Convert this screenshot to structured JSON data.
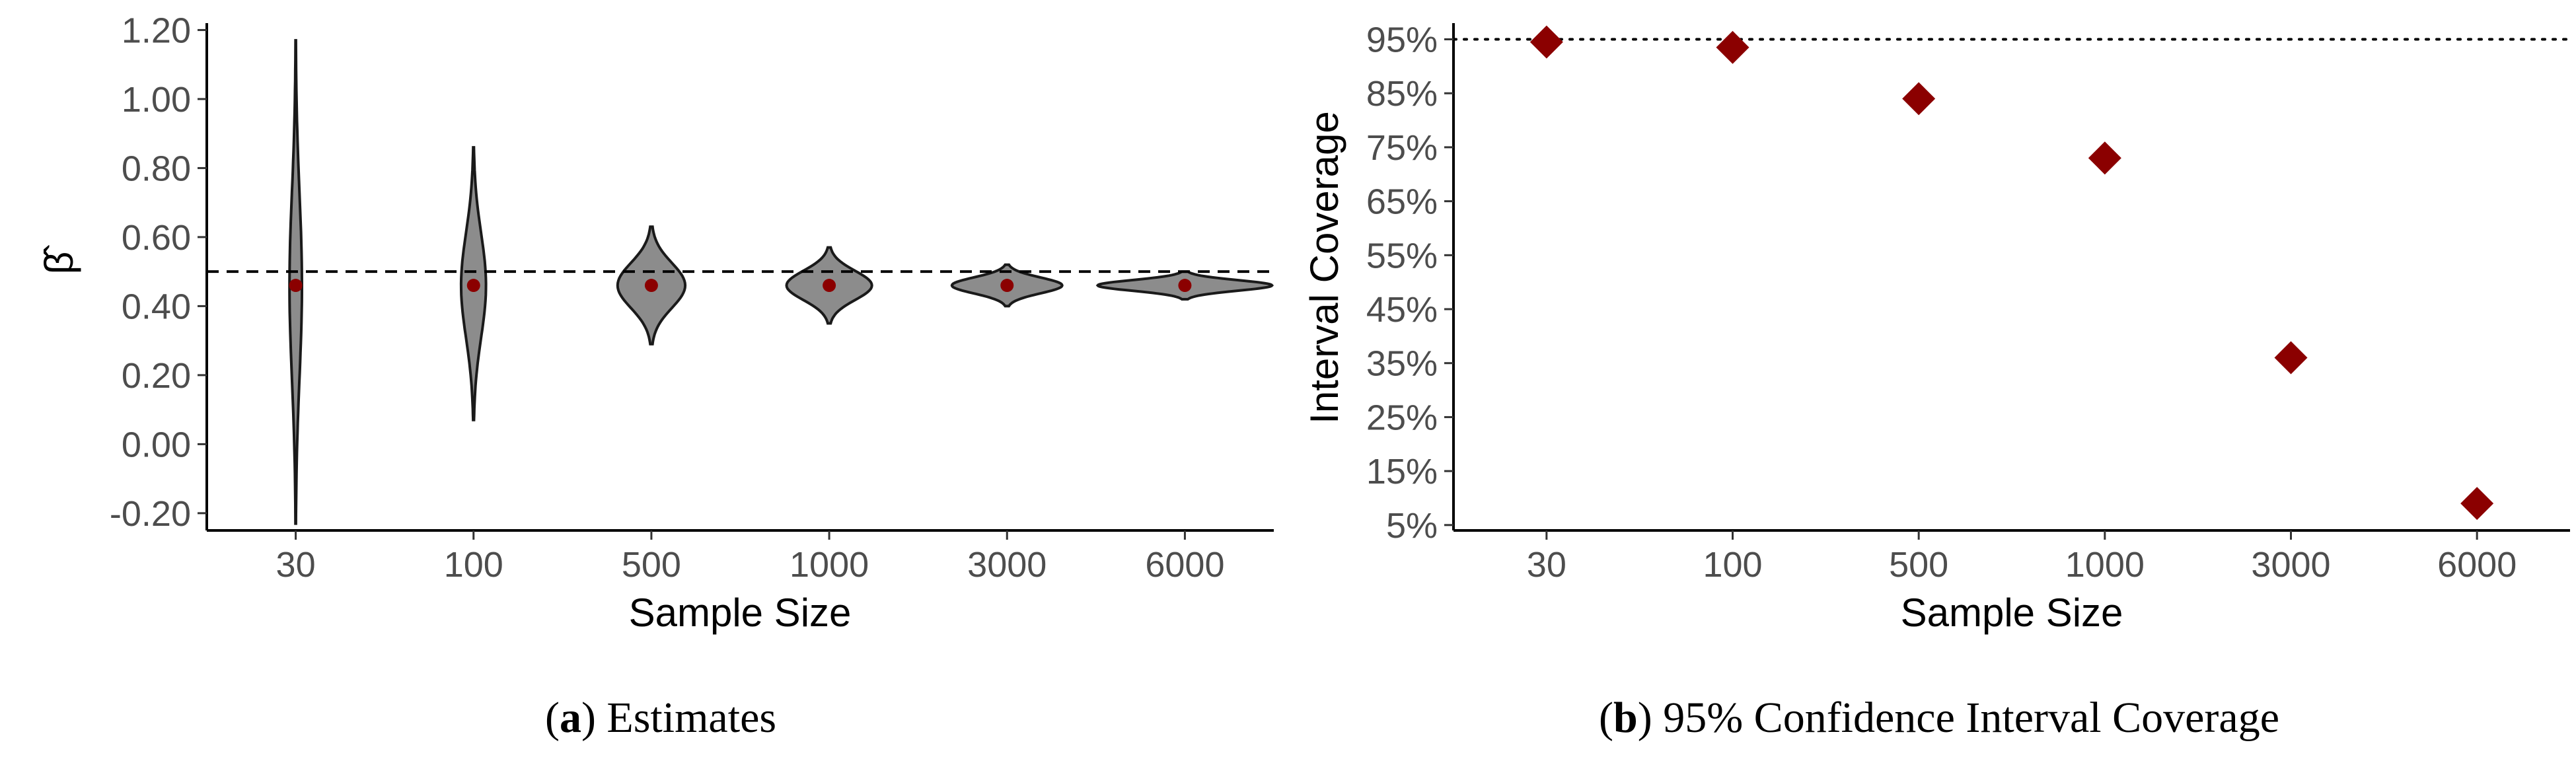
{
  "chart_data": [
    {
      "type": "violin",
      "caption_letter": "a",
      "caption_text": "Estimates",
      "xlabel": "Sample Size",
      "ylabel": "β̂",
      "categories": [
        "30",
        "100",
        "500",
        "1000",
        "3000",
        "6000"
      ],
      "ylim": [
        -0.25,
        1.22
      ],
      "yticks": [
        -0.2,
        0.0,
        0.2,
        0.4,
        0.6,
        0.8,
        1.0,
        1.2
      ],
      "ytick_labels": [
        "-0.20",
        "0.00",
        "0.20",
        "0.40",
        "0.60",
        "0.80",
        "1.00",
        "1.20"
      ],
      "reference_line": 0.5,
      "point_color": "#8b0000",
      "violin_fill": "#8c8c8c",
      "violins": [
        {
          "category": "30",
          "min": -0.23,
          "max": 1.17,
          "mean": 0.46,
          "width": 0.07
        },
        {
          "category": "100",
          "min": 0.07,
          "max": 0.86,
          "mean": 0.46,
          "width": 0.14
        },
        {
          "category": "500",
          "min": 0.29,
          "max": 0.63,
          "mean": 0.46,
          "width": 0.38
        },
        {
          "category": "1000",
          "min": 0.35,
          "max": 0.57,
          "mean": 0.46,
          "width": 0.48
        },
        {
          "category": "3000",
          "min": 0.4,
          "max": 0.52,
          "mean": 0.46,
          "width": 0.62
        },
        {
          "category": "6000",
          "min": 0.42,
          "max": 0.5,
          "mean": 0.46,
          "width": 0.98
        }
      ]
    },
    {
      "type": "scatter",
      "caption_letter": "b",
      "caption_text": "95% Confidence Interval Coverage",
      "xlabel": "Sample Size",
      "ylabel": "Interval Coverage",
      "categories": [
        "30",
        "100",
        "500",
        "1000",
        "3000",
        "6000"
      ],
      "values": [
        94.5,
        93.5,
        84.0,
        73.0,
        36.0,
        9.0
      ],
      "ylim": [
        4,
        98
      ],
      "yticks": [
        5,
        15,
        25,
        35,
        45,
        55,
        65,
        75,
        85,
        95
      ],
      "ytick_labels": [
        "5%",
        "15%",
        "25%",
        "35%",
        "45%",
        "55%",
        "65%",
        "75%",
        "85%",
        "95%"
      ],
      "reference_line": 95,
      "marker": "diamond",
      "point_color": "#8b0000"
    }
  ]
}
